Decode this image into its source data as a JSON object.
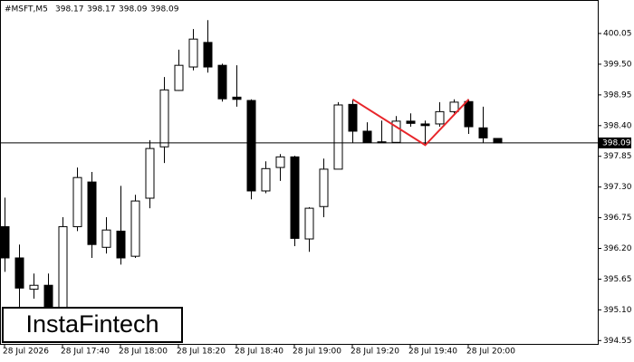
{
  "chart_data": {
    "type": "candlestick",
    "symbol": "#MSFT,M5",
    "watermark": "InstaFintech",
    "categories": [
      "28 Jul 2026",
      null,
      null,
      null,
      "28 Jul 17:40",
      null,
      null,
      null,
      "28 Jul 18:00",
      null,
      null,
      null,
      "28 Jul 18:20",
      null,
      null,
      null,
      "28 Jul 18:40",
      null,
      null,
      null,
      "28 Jul 19:00",
      null,
      null,
      null,
      "28 Jul 19:20",
      null,
      null,
      null,
      "28 Jul 19:40",
      null,
      null,
      null,
      "28 Jul 20:00",
      null,
      null
    ],
    "open": [
      396.59,
      396.03,
      395.47,
      395.54,
      395.13,
      396.59,
      397.39,
      396.22,
      396.51,
      396.06,
      397.1,
      398.02,
      399.03,
      399.45,
      399.89,
      399.48,
      398.91,
      398.85,
      397.23,
      397.65,
      397.84,
      396.37,
      396.95,
      397.62,
      398.78,
      398.3,
      398.1,
      398.1,
      398.48,
      398.43,
      398.43,
      398.65,
      398.83,
      398.36,
      398.17
    ],
    "high": [
      397.11,
      396.27,
      395.75,
      395.75,
      396.76,
      397.65,
      397.57,
      396.76,
      397.32,
      397.16,
      398.14,
      399.27,
      399.76,
      400.13,
      400.29,
      399.51,
      399.48,
      398.87,
      397.76,
      397.89,
      397.86,
      396.94,
      397.81,
      398.82,
      398.87,
      398.46,
      398.49,
      398.57,
      398.62,
      398.49,
      398.82,
      398.87,
      398.87,
      398.74,
      398.17
    ],
    "low": [
      395.78,
      395.13,
      395.3,
      394.97,
      394.97,
      396.51,
      396.03,
      396.11,
      395.91,
      396.03,
      396.92,
      397.73,
      399.02,
      399.39,
      399.35,
      398.83,
      398.74,
      397.08,
      397.19,
      397.41,
      396.24,
      396.14,
      396.76,
      397.62,
      398.09,
      398.09,
      398.09,
      398.09,
      398.38,
      398.05,
      398.38,
      398.62,
      398.25,
      398.09,
      398.09
    ],
    "close": [
      396.03,
      395.49,
      395.54,
      395.13,
      396.59,
      397.47,
      396.27,
      396.53,
      396.03,
      397.05,
      397.99,
      399.04,
      399.48,
      399.95,
      399.45,
      398.88,
      398.87,
      397.23,
      397.63,
      397.84,
      396.38,
      396.92,
      397.62,
      398.77,
      398.3,
      398.1,
      398.11,
      398.48,
      398.44,
      398.4,
      398.65,
      398.82,
      398.38,
      398.18,
      398.09
    ],
    "up_color": "#ffffff",
    "down_color": "#000000",
    "pattern": {
      "color": "#e8262b",
      "points": [
        {
          "x": 24,
          "y": 398.87
        },
        {
          "x": 29,
          "y": 398.05
        },
        {
          "x": 32,
          "y": 398.87
        }
      ]
    },
    "ylim": [
      394.49,
      400.65
    ],
    "yticks": [
      400.05,
      {
        "value": 399.5,
        "label": "399.50"
      },
      398.95,
      {
        "value": 398.4,
        "label": "398.40"
      },
      397.85,
      {
        "value": 397.3,
        "label": "397.30"
      },
      396.75,
      {
        "value": 396.2,
        "label": "396.20"
      },
      395.65,
      {
        "value": 395.1,
        "label": "395.10"
      },
      394.55
    ]
  }
}
